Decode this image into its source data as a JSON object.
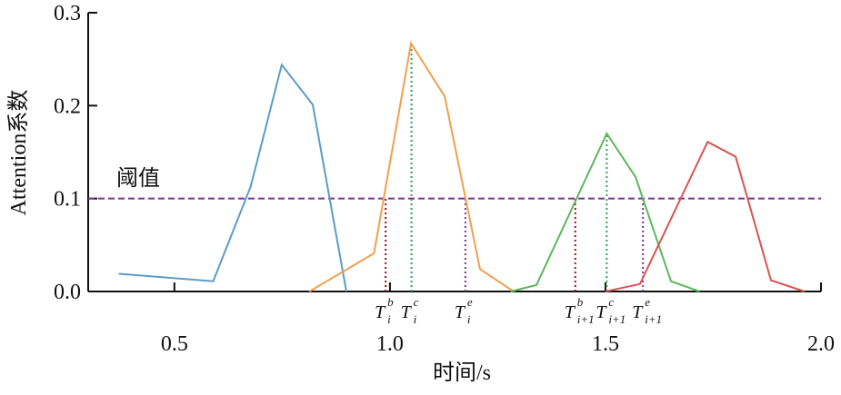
{
  "chart_data": {
    "type": "line",
    "x_label": "时间/s",
    "y_label": "Attention系数",
    "xlim": [
      0.3,
      2.0
    ],
    "ylim": [
      0.0,
      0.3
    ],
    "xticks": [
      0.5,
      {
        "value": 1.0,
        "label": "1.0"
      },
      1.5,
      {
        "value": 2.0,
        "label": "2.0"
      }
    ],
    "yticks": [
      {
        "value": 0.0,
        "label": "0.0"
      },
      0.1,
      0.2,
      0.3
    ],
    "series": [
      {
        "color": "#5b9bc8",
        "x": [
          0.371,
          0.59,
          0.677,
          0.749,
          0.821,
          0.899
        ],
        "values": [
          0.019,
          0.011,
          0.113,
          0.244,
          0.201,
          0.0
        ]
      },
      {
        "color": "#f0a04b",
        "x": [
          0.813,
          0.963,
          1.049,
          1.127,
          1.209,
          1.287
        ],
        "values": [
          0.0,
          0.041,
          0.267,
          0.21,
          0.024,
          0.0
        ]
      },
      {
        "color": "#5cb85c",
        "x": [
          1.28,
          1.34,
          1.503,
          1.57,
          1.652,
          1.718
        ],
        "values": [
          0.0,
          0.007,
          0.17,
          0.123,
          0.011,
          0.0
        ]
      },
      {
        "color": "#d9534f",
        "x": [
          1.5,
          1.58,
          1.737,
          1.802,
          1.884,
          1.962
        ],
        "values": [
          0.0,
          0.008,
          0.161,
          0.145,
          0.012,
          0.0
        ]
      }
    ],
    "threshold": {
      "value": 0.1,
      "label": "阈值",
      "color": "#7b3294"
    },
    "markers": [
      {
        "x": 0.99,
        "y": 0.1,
        "color": "#a01010",
        "label": "T",
        "sup": "b",
        "sub": "i"
      },
      {
        "x": 1.05,
        "y": 0.267,
        "color": "#2ca05a",
        "label": "T",
        "sup": "c",
        "sub": "i"
      },
      {
        "x": 1.175,
        "y": 0.1,
        "color": "#7b3294",
        "label": "T",
        "sup": "e",
        "sub": "i"
      },
      {
        "x": 1.43,
        "y": 0.1,
        "color": "#a01010",
        "label": "T",
        "sup": "b",
        "sub": "i+1"
      },
      {
        "x": 1.503,
        "y": 0.17,
        "color": "#2ca05a",
        "label": "T",
        "sup": "c",
        "sub": "i+1"
      },
      {
        "x": 1.587,
        "y": 0.1,
        "color": "#7b3294",
        "label": "T",
        "sup": "e",
        "sub": "i+1"
      }
    ]
  }
}
